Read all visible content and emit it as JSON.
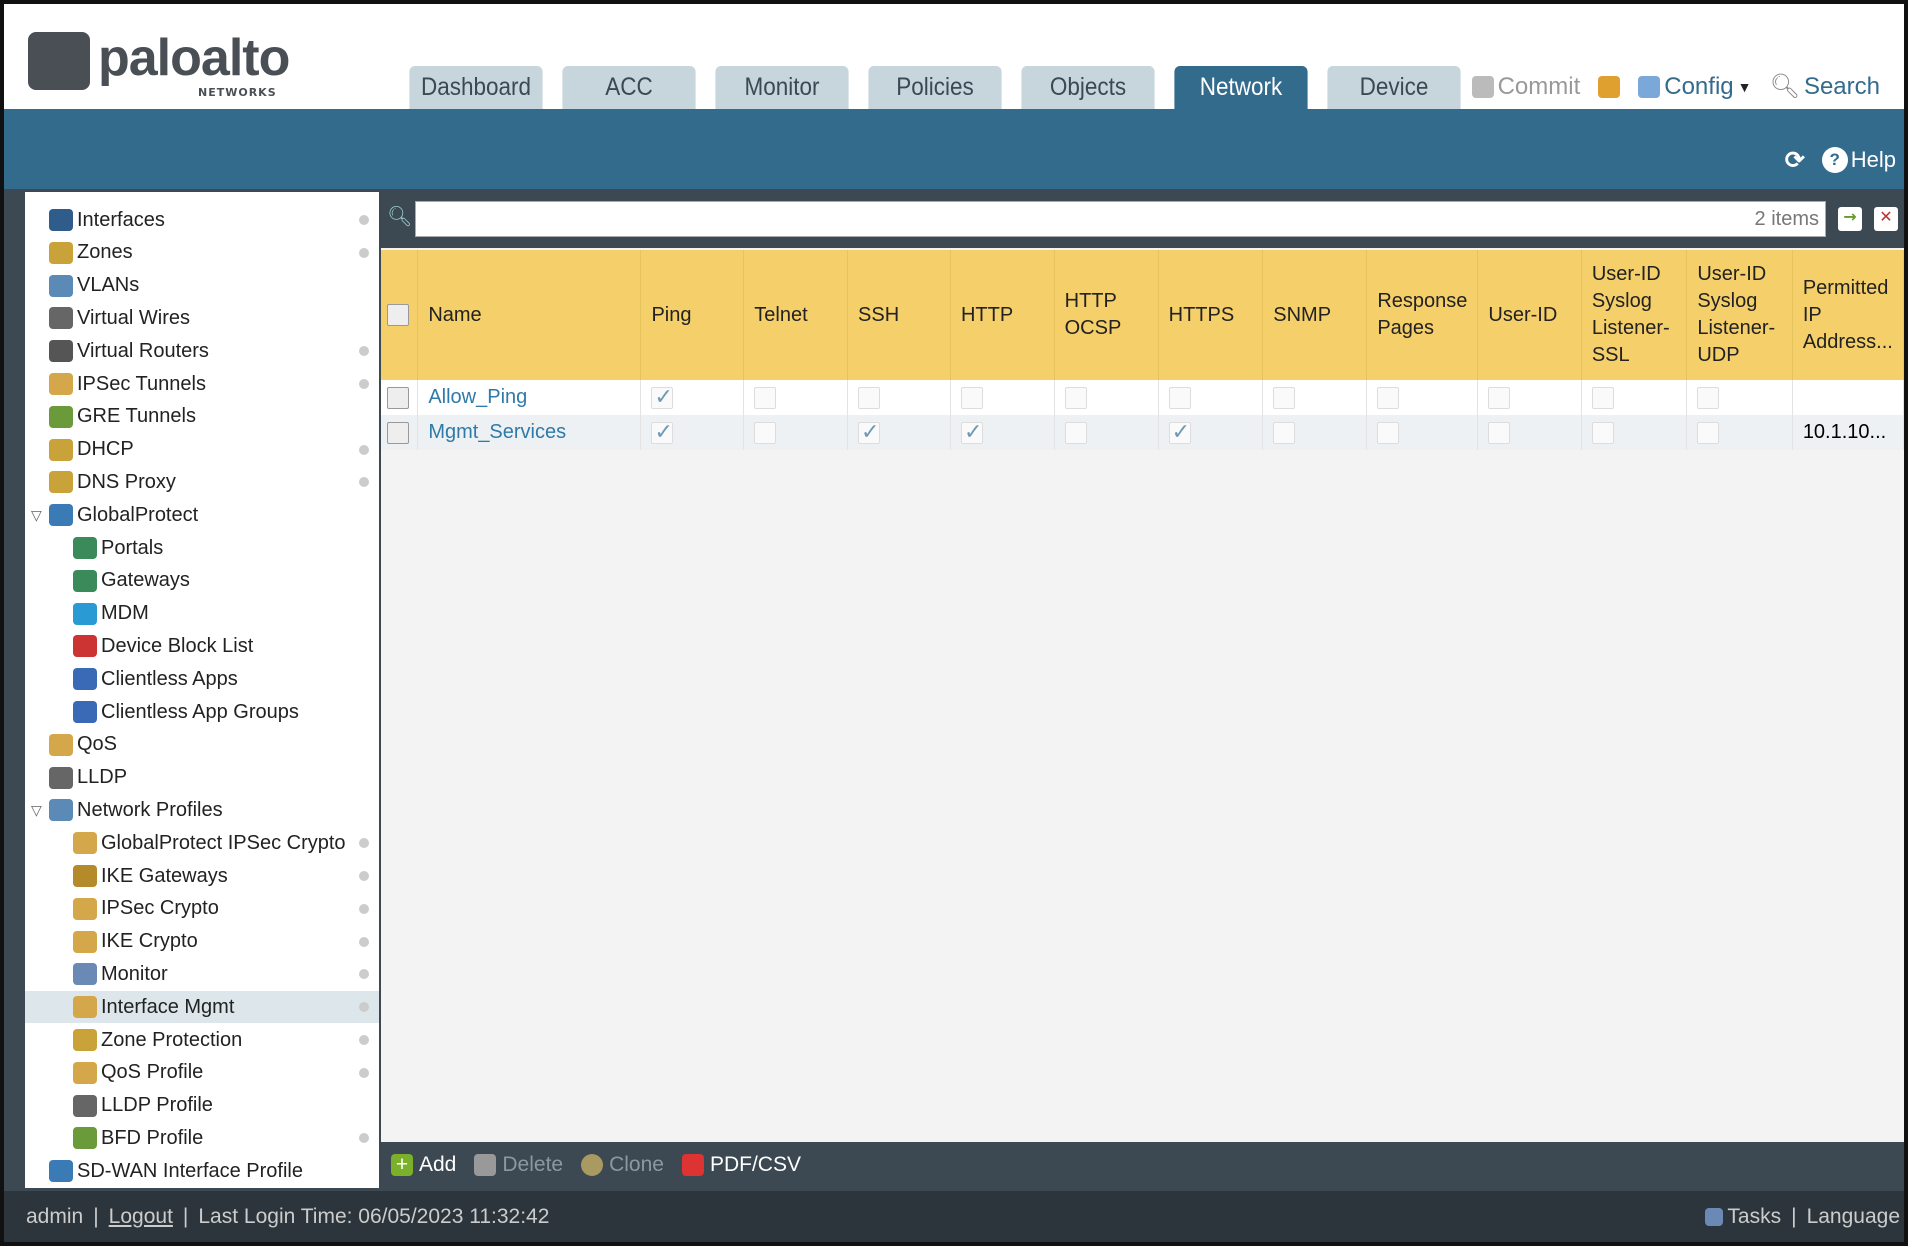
{
  "brand": {
    "name": "paloalto",
    "sub": "NETWORKS"
  },
  "tabs": [
    "Dashboard",
    "ACC",
    "Monitor",
    "Policies",
    "Objects",
    "Network",
    "Device"
  ],
  "active_tab": "Network",
  "toolbar": {
    "commit": "Commit",
    "config": "Config",
    "search": "Search",
    "help": "Help"
  },
  "sidebar": [
    {
      "label": "Interfaces",
      "level": 0,
      "dot": true,
      "color": "#2f5c8a"
    },
    {
      "label": "Zones",
      "level": 0,
      "dot": true,
      "color": "#c9a23a"
    },
    {
      "label": "VLANs",
      "level": 0,
      "dot": false,
      "color": "#5a8ab5"
    },
    {
      "label": "Virtual Wires",
      "level": 0,
      "dot": false,
      "color": "#666"
    },
    {
      "label": "Virtual Routers",
      "level": 0,
      "dot": true,
      "color": "#555"
    },
    {
      "label": "IPSec Tunnels",
      "level": 0,
      "dot": true,
      "color": "#d4a84a"
    },
    {
      "label": "GRE Tunnels",
      "level": 0,
      "dot": false,
      "color": "#6a9a3a"
    },
    {
      "label": "DHCP",
      "level": 0,
      "dot": true,
      "color": "#c9a23a"
    },
    {
      "label": "DNS Proxy",
      "level": 0,
      "dot": true,
      "color": "#c9a23a"
    },
    {
      "label": "GlobalProtect",
      "level": 0,
      "dot": false,
      "expanded": true,
      "color": "#3a7ab5"
    },
    {
      "label": "Portals",
      "level": 1,
      "dot": false,
      "color": "#3a8a5a"
    },
    {
      "label": "Gateways",
      "level": 1,
      "dot": false,
      "color": "#3a8a5a"
    },
    {
      "label": "MDM",
      "level": 1,
      "dot": false,
      "color": "#2a9ad5"
    },
    {
      "label": "Device Block List",
      "level": 1,
      "dot": false,
      "color": "#c33"
    },
    {
      "label": "Clientless Apps",
      "level": 1,
      "dot": false,
      "color": "#3a6ab5"
    },
    {
      "label": "Clientless App Groups",
      "level": 1,
      "dot": false,
      "color": "#3a6ab5"
    },
    {
      "label": "QoS",
      "level": 0,
      "dot": false,
      "color": "#d4a84a"
    },
    {
      "label": "LLDP",
      "level": 0,
      "dot": false,
      "color": "#666"
    },
    {
      "label": "Network Profiles",
      "level": 0,
      "dot": false,
      "expanded": true,
      "color": "#5a8ab5"
    },
    {
      "label": "GlobalProtect IPSec Crypto",
      "level": 1,
      "dot": true,
      "color": "#d4a84a"
    },
    {
      "label": "IKE Gateways",
      "level": 1,
      "dot": true,
      "color": "#b58a2a"
    },
    {
      "label": "IPSec Crypto",
      "level": 1,
      "dot": true,
      "color": "#d4a84a"
    },
    {
      "label": "IKE Crypto",
      "level": 1,
      "dot": true,
      "color": "#d4a84a"
    },
    {
      "label": "Monitor",
      "level": 1,
      "dot": true,
      "color": "#6a8ab5"
    },
    {
      "label": "Interface Mgmt",
      "level": 1,
      "dot": true,
      "selected": true,
      "color": "#d4a84a"
    },
    {
      "label": "Zone Protection",
      "level": 1,
      "dot": true,
      "color": "#c9a23a"
    },
    {
      "label": "QoS Profile",
      "level": 1,
      "dot": true,
      "color": "#d4a84a"
    },
    {
      "label": "LLDP Profile",
      "level": 1,
      "dot": false,
      "color": "#666"
    },
    {
      "label": "BFD Profile",
      "level": 1,
      "dot": true,
      "color": "#6a9a3a"
    },
    {
      "label": "SD-WAN Interface Profile",
      "level": 0,
      "dot": false,
      "color": "#3a7ab5"
    }
  ],
  "search": {
    "count": "2 items"
  },
  "table": {
    "columns": [
      [
        "Name"
      ],
      [
        "Ping"
      ],
      [
        "Telnet"
      ],
      [
        "SSH"
      ],
      [
        "HTTP"
      ],
      [
        "HTTP",
        "OCSP"
      ],
      [
        "HTTPS"
      ],
      [
        "SNMP"
      ],
      [
        "Response",
        "Pages"
      ],
      [
        "User-ID"
      ],
      [
        "User-ID",
        "Syslog",
        "Listener-",
        "SSL"
      ],
      [
        "User-ID",
        "Syslog",
        "Listener-",
        "UDP"
      ],
      [
        "Permitted",
        "IP",
        "Address..."
      ]
    ],
    "rows": [
      {
        "name": "Allow_Ping",
        "checks": [
          true,
          false,
          false,
          false,
          false,
          false,
          false,
          false,
          false,
          false,
          false
        ],
        "permitted": ""
      },
      {
        "name": "Mgmt_Services",
        "checks": [
          true,
          false,
          true,
          true,
          false,
          true,
          false,
          false,
          false,
          false,
          false
        ],
        "permitted": "10.1.10..."
      }
    ]
  },
  "actions": {
    "add": "Add",
    "delete": "Delete",
    "clone": "Clone",
    "pdf": "PDF/CSV"
  },
  "footer": {
    "user": "admin",
    "logout": "Logout",
    "last_login": "Last Login Time: 06/05/2023 11:32:42",
    "tasks": "Tasks",
    "language": "Language"
  }
}
